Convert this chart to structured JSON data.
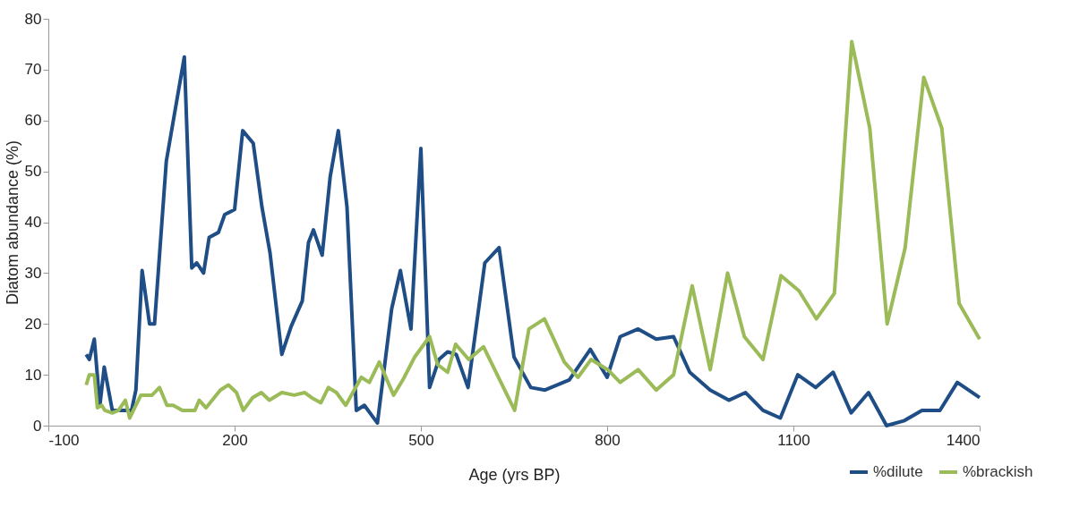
{
  "chart_data": {
    "type": "line",
    "xlabel": "Age (yrs BP)",
    "ylabel": "Diatom abundance (%)",
    "xlim": [
      -100,
      1400
    ],
    "xticks": [
      -100,
      200,
      500,
      800,
      1100,
      1400
    ],
    "ylim": [
      0,
      80
    ],
    "yticks": [
      0,
      10,
      20,
      30,
      40,
      50,
      60,
      70,
      80
    ],
    "grid": false,
    "legend": "bottom right",
    "marker": "none",
    "line_style": "solid",
    "series": [
      {
        "name": "%dilute",
        "color": "#1f4e87",
        "x": [
          -39,
          -34,
          -26,
          -17,
          -10,
          3,
          16,
          34,
          41,
          51,
          63,
          71,
          90,
          119,
          131,
          139,
          150,
          159,
          174,
          184,
          200,
          213,
          230,
          244,
          257,
          276,
          291,
          309,
          319,
          327,
          341,
          354,
          367,
          381,
          396,
          409,
          430,
          453,
          467,
          484,
          500,
          514,
          529,
          543,
          557,
          576,
          603,
          626,
          650,
          677,
          700,
          739,
          773,
          800,
          821,
          850,
          879,
          907,
          933,
          966,
          996,
          1023,
          1051,
          1079,
          1107,
          1136,
          1164,
          1193,
          1221,
          1250,
          1279,
          1307,
          1336,
          1364,
          1400
        ],
        "values": [
          14,
          13,
          17,
          4,
          11.5,
          3,
          3,
          3,
          7,
          30.5,
          20,
          20,
          52,
          72.5,
          31,
          32,
          30,
          37,
          38,
          41.5,
          42.5,
          58,
          55.5,
          43,
          34,
          14,
          19.5,
          24.5,
          36,
          38.5,
          33.5,
          49,
          58,
          43,
          3,
          4,
          0.5,
          23,
          30.5,
          19,
          54.5,
          7.5,
          13,
          14.5,
          14,
          7.5,
          32,
          35,
          13.5,
          7.5,
          7,
          9,
          15,
          9.5,
          17.5,
          19,
          17,
          17.5,
          10.5,
          7,
          5,
          6.5,
          3,
          1.5,
          10,
          7.5,
          10.5,
          2.5,
          6.5,
          0,
          1,
          3,
          3,
          8.5,
          5.5
        ]
      },
      {
        "name": "%brackish",
        "color": "#9bbb59",
        "x": [
          -39,
          -34,
          -26,
          -21,
          -14,
          -9,
          3,
          13,
          24,
          31,
          49,
          67,
          79,
          91,
          101,
          116,
          136,
          143,
          154,
          177,
          190,
          203,
          214,
          229,
          243,
          256,
          276,
          296,
          313,
          324,
          339,
          351,
          364,
          379,
          404,
          417,
          433,
          456,
          471,
          490,
          514,
          527,
          543,
          556,
          577,
          601,
          627,
          651,
          674,
          699,
          731,
          753,
          774,
          801,
          821,
          850,
          879,
          907,
          937,
          966,
          994,
          1021,
          1051,
          1080,
          1109,
          1137,
          1166,
          1194,
          1223,
          1251,
          1280,
          1310,
          1339,
          1367,
          1400
        ],
        "values": [
          8,
          10,
          10,
          3.5,
          4,
          3,
          2.5,
          3,
          5,
          1.5,
          6,
          6,
          7.5,
          4,
          4,
          3,
          3,
          5,
          3.5,
          7,
          8,
          6.5,
          3,
          5.5,
          6.5,
          5,
          6.5,
          6,
          6.5,
          5.5,
          4.5,
          7.5,
          6.5,
          4,
          9.5,
          8.5,
          12.5,
          6,
          9,
          13.5,
          17.5,
          12,
          10.5,
          16,
          13,
          15.5,
          9,
          3,
          19,
          21,
          12.5,
          9.5,
          13,
          11,
          8.5,
          11,
          7,
          10,
          27.5,
          11,
          30,
          17.5,
          13,
          29.5,
          26.5,
          21,
          26,
          75.5,
          58.5,
          20,
          35,
          68.5,
          58.5,
          24,
          17
        ]
      }
    ]
  }
}
